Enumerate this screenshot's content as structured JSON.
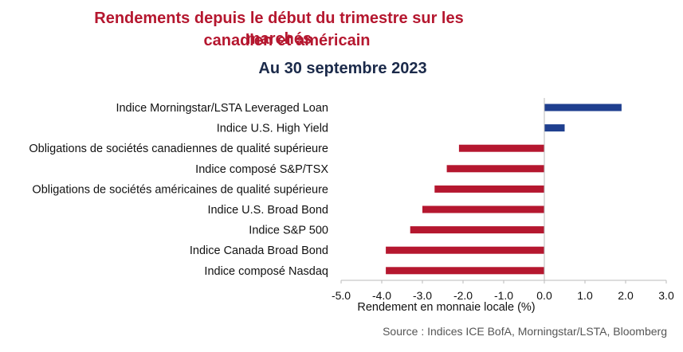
{
  "chart_data": {
    "type": "bar",
    "orientation": "horizontal",
    "title_line1": "Rendements depuis le début du trimestre sur les marchés",
    "title_line2": "canadien et américain",
    "subtitle": "Au 30 septembre 2023",
    "xlabel": "Rendement en monnaie locale (%)",
    "source": "Source : Indices ICE BofA, Morningstar/LSTA, Bloomberg",
    "xlim": [
      -5.0,
      3.0
    ],
    "xticks": [
      "-5.0",
      "-4.0",
      "-3.0",
      "-2.0",
      "-1.0",
      "0.0",
      "1.0",
      "2.0",
      "3.0"
    ],
    "categories": [
      "Indice Morningstar/LSTA Leveraged Loan",
      "Indice U.S. High Yield",
      "Obligations de sociétés canadiennes de qualité supérieure",
      "Indice composé S&P/TSX",
      "Obligations de sociétés américaines de qualité supérieure",
      "Indice U.S. Broad Bond",
      "Indice S&P 500",
      "Indice Canada Broad Bond",
      "Indice composé Nasdaq"
    ],
    "values": [
      1.9,
      0.5,
      -2.1,
      -2.4,
      -2.7,
      -3.0,
      -3.3,
      -3.9,
      -3.9
    ],
    "colors": {
      "positive": "#1f3f8f",
      "negative": "#b5172f"
    }
  }
}
